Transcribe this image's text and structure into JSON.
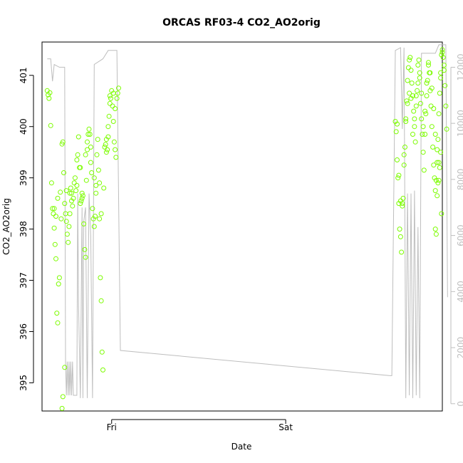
{
  "chart_data": {
    "type": "scatter",
    "title": "ORCAS RF03-4 CO2_AO2orig",
    "xlabel": "Date",
    "ylabel": "CO2_AO2orig",
    "x_ticks": [
      "Fri",
      "Sat"
    ],
    "y_ticks": [
      "395",
      "396",
      "397",
      "398",
      "399",
      "400",
      "401"
    ],
    "y2_ticks": [
      "0",
      "2000",
      "4000",
      "6000",
      "8000",
      "10000",
      "12000"
    ],
    "ylim": [
      394.45,
      401.65
    ],
    "y2lim": [
      -260,
      12900
    ],
    "xlim_days_rel_fri": [
      -0.4,
      1.9
    ],
    "colors": {
      "points": "#7cfc00",
      "line": "#bebebe",
      "axis": "#000000",
      "right_axis": "#bebebe"
    },
    "series": [
      {
        "type": "scatter",
        "axis": "left",
        "points": [
          [
            -0.37,
            400.7
          ],
          [
            -0.365,
            400.62
          ],
          [
            -0.36,
            400.55
          ],
          [
            -0.355,
            400.66
          ],
          [
            -0.35,
            400.02
          ],
          [
            -0.345,
            398.9
          ],
          [
            -0.34,
            398.4
          ],
          [
            -0.335,
            398.3
          ],
          [
            -0.33,
            398.02
          ],
          [
            -0.325,
            397.7
          ],
          [
            -0.32,
            397.42
          ],
          [
            -0.315,
            396.36
          ],
          [
            -0.31,
            396.17
          ],
          [
            -0.305,
            396.93
          ],
          [
            -0.3,
            397.05
          ],
          [
            -0.295,
            398.72
          ],
          [
            -0.29,
            398.2
          ],
          [
            -0.285,
            399.66
          ],
          [
            -0.28,
            399.7
          ],
          [
            -0.275,
            399.1
          ],
          [
            -0.27,
            398.5
          ],
          [
            -0.265,
            398.3
          ],
          [
            -0.26,
            398.15
          ],
          [
            -0.255,
            397.9
          ],
          [
            -0.25,
            397.74
          ],
          [
            -0.245,
            398.05
          ],
          [
            -0.24,
            398.7
          ],
          [
            -0.235,
            398.8
          ],
          [
            -0.23,
            398.55
          ],
          [
            -0.225,
            398.45
          ],
          [
            -0.22,
            398.6
          ],
          [
            -0.215,
            398.9
          ],
          [
            -0.21,
            399.0
          ],
          [
            -0.205,
            398.75
          ],
          [
            -0.2,
            399.35
          ],
          [
            -0.195,
            399.45
          ],
          [
            -0.19,
            399.8
          ],
          [
            -0.185,
            399.2
          ],
          [
            -0.18,
            398.5
          ],
          [
            -0.175,
            398.55
          ],
          [
            -0.17,
            398.6
          ],
          [
            -0.165,
            398.65
          ],
          [
            -0.16,
            398.1
          ],
          [
            -0.155,
            397.6
          ],
          [
            -0.15,
            397.45
          ],
          [
            -0.145,
            398.95
          ],
          [
            -0.14,
            399.55
          ],
          [
            -0.135,
            399.85
          ],
          [
            -0.13,
            399.95
          ],
          [
            -0.125,
            399.85
          ],
          [
            -0.12,
            399.3
          ],
          [
            -0.115,
            399.1
          ],
          [
            -0.11,
            398.4
          ],
          [
            -0.105,
            398.2
          ],
          [
            -0.1,
            398.05
          ],
          [
            -0.095,
            398.25
          ],
          [
            -0.09,
            398.7
          ],
          [
            -0.085,
            399.45
          ],
          [
            -0.08,
            399.75
          ],
          [
            -0.075,
            399.15
          ],
          [
            -0.07,
            398.2
          ],
          [
            -0.065,
            397.05
          ],
          [
            -0.06,
            396.6
          ],
          [
            -0.055,
            395.6
          ],
          [
            -0.05,
            395.25
          ],
          [
            -0.045,
            398.8
          ],
          [
            -0.04,
            399.6
          ],
          [
            -0.035,
            399.65
          ],
          [
            -0.03,
            399.5
          ],
          [
            -0.025,
            399.55
          ],
          [
            -0.02,
            399.8
          ],
          [
            -0.015,
            400.2
          ],
          [
            -0.01,
            400.45
          ],
          [
            -0.005,
            400.55
          ],
          [
            0.0,
            400.7
          ],
          [
            0.005,
            400.4
          ],
          [
            0.01,
            400.1
          ],
          [
            0.015,
            399.7
          ],
          [
            0.02,
            399.55
          ],
          [
            0.025,
            399.4
          ],
          [
            0.03,
            400.55
          ],
          [
            0.035,
            400.65
          ],
          [
            0.04,
            400.75
          ],
          [
            -0.27,
            395.3
          ],
          [
            -0.28,
            394.73
          ],
          [
            -0.285,
            394.5
          ],
          [
            -0.33,
            398.4
          ],
          [
            -0.32,
            398.25
          ],
          [
            -0.31,
            398.6
          ],
          [
            -0.26,
            398.75
          ],
          [
            -0.24,
            398.3
          ],
          [
            -0.23,
            398.7
          ],
          [
            -0.2,
            398.85
          ],
          [
            -0.18,
            399.2
          ],
          [
            -0.17,
            398.7
          ],
          [
            -0.15,
            399.45
          ],
          [
            -0.14,
            399.7
          ],
          [
            -0.12,
            399.6
          ],
          [
            -0.1,
            399.0
          ],
          [
            -0.09,
            398.85
          ],
          [
            -0.07,
            398.9
          ],
          [
            -0.06,
            398.3
          ],
          [
            -0.03,
            399.75
          ],
          [
            -0.02,
            400.0
          ],
          [
            -0.01,
            400.6
          ],
          [
            0.01,
            400.65
          ],
          [
            0.02,
            400.35
          ],
          [
            1.63,
            400.1
          ],
          [
            1.635,
            399.9
          ],
          [
            1.64,
            399.35
          ],
          [
            1.645,
            399.0
          ],
          [
            1.65,
            398.5
          ],
          [
            1.655,
            398.0
          ],
          [
            1.66,
            397.85
          ],
          [
            1.665,
            397.55
          ],
          [
            1.67,
            398.45
          ],
          [
            1.675,
            398.6
          ],
          [
            1.68,
            399.25
          ],
          [
            1.685,
            399.6
          ],
          [
            1.69,
            400.1
          ],
          [
            1.695,
            400.5
          ],
          [
            1.7,
            400.9
          ],
          [
            1.705,
            401.15
          ],
          [
            1.71,
            401.3
          ],
          [
            1.715,
            401.35
          ],
          [
            1.72,
            401.1
          ],
          [
            1.725,
            400.85
          ],
          [
            1.73,
            400.6
          ],
          [
            1.735,
            400.3
          ],
          [
            1.74,
            400.0
          ],
          [
            1.745,
            399.7
          ],
          [
            1.75,
            400.4
          ],
          [
            1.755,
            400.7
          ],
          [
            1.76,
            401.2
          ],
          [
            1.765,
            401.3
          ],
          [
            1.77,
            400.95
          ],
          [
            1.775,
            400.45
          ],
          [
            1.78,
            400.15
          ],
          [
            1.785,
            399.85
          ],
          [
            1.79,
            399.5
          ],
          [
            1.795,
            399.15
          ],
          [
            1.8,
            399.85
          ],
          [
            1.805,
            400.25
          ],
          [
            1.81,
            400.6
          ],
          [
            1.815,
            400.9
          ],
          [
            1.82,
            401.25
          ],
          [
            1.825,
            401.05
          ],
          [
            1.83,
            400.7
          ],
          [
            1.835,
            400.4
          ],
          [
            1.84,
            400.0
          ],
          [
            1.845,
            399.6
          ],
          [
            1.85,
            399.25
          ],
          [
            1.855,
            399.0
          ],
          [
            1.86,
            398.75
          ],
          [
            1.865,
            398.95
          ],
          [
            1.87,
            399.3
          ],
          [
            1.875,
            399.75
          ],
          [
            1.88,
            400.25
          ],
          [
            1.885,
            400.65
          ],
          [
            1.89,
            401.05
          ],
          [
            1.895,
            401.4
          ],
          [
            1.9,
            401.5
          ],
          [
            1.905,
            401.35
          ],
          [
            1.91,
            401.1
          ],
          [
            1.915,
            400.8
          ],
          [
            1.92,
            400.4
          ],
          [
            1.925,
            399.95
          ],
          [
            1.86,
            398.0
          ],
          [
            1.865,
            397.9
          ],
          [
            1.87,
            398.65
          ],
          [
            1.875,
            398.9
          ],
          [
            1.88,
            398.95
          ],
          [
            1.885,
            399.2
          ],
          [
            1.89,
            399.5
          ],
          [
            1.895,
            398.3
          ],
          [
            1.64,
            400.05
          ],
          [
            1.65,
            399.05
          ],
          [
            1.66,
            398.55
          ],
          [
            1.67,
            398.5
          ],
          [
            1.68,
            399.45
          ],
          [
            1.69,
            400.15
          ],
          [
            1.7,
            400.45
          ],
          [
            1.71,
            400.65
          ],
          [
            1.72,
            400.55
          ],
          [
            1.73,
            399.85
          ],
          [
            1.74,
            400.15
          ],
          [
            1.75,
            400.6
          ],
          [
            1.76,
            400.85
          ],
          [
            1.77,
            401.05
          ],
          [
            1.78,
            400.65
          ],
          [
            1.79,
            400.0
          ],
          [
            1.8,
            400.3
          ],
          [
            1.81,
            400.85
          ],
          [
            1.82,
            401.2
          ],
          [
            1.83,
            401.05
          ],
          [
            1.84,
            400.75
          ],
          [
            1.85,
            400.35
          ],
          [
            1.86,
            399.85
          ],
          [
            1.87,
            399.55
          ],
          [
            1.88,
            399.3
          ],
          [
            1.89,
            400.95
          ],
          [
            1.9,
            401.45
          ],
          [
            1.91,
            401.2
          ]
        ]
      },
      {
        "type": "line",
        "axis": "right",
        "points": [
          [
            -0.37,
            12300
          ],
          [
            -0.35,
            12300
          ],
          [
            -0.34,
            11500
          ],
          [
            -0.33,
            12100
          ],
          [
            -0.3,
            12000
          ],
          [
            -0.27,
            12000
          ],
          [
            -0.265,
            1500
          ],
          [
            -0.26,
            300
          ],
          [
            -0.255,
            1500
          ],
          [
            -0.25,
            300
          ],
          [
            -0.245,
            1500
          ],
          [
            -0.24,
            300
          ],
          [
            -0.235,
            1500
          ],
          [
            -0.23,
            300
          ],
          [
            -0.225,
            1500
          ],
          [
            -0.22,
            300
          ],
          [
            -0.2,
            300
          ],
          [
            -0.195,
            7500
          ],
          [
            -0.19,
            3500
          ],
          [
            -0.18,
            200
          ],
          [
            -0.17,
            7000
          ],
          [
            -0.165,
            200
          ],
          [
            -0.16,
            6500
          ],
          [
            -0.15,
            7000
          ],
          [
            -0.14,
            200
          ],
          [
            -0.13,
            7500
          ],
          [
            -0.12,
            6000
          ],
          [
            -0.11,
            200
          ],
          [
            -0.1,
            12100
          ],
          [
            -0.05,
            12300
          ],
          [
            -0.02,
            12600
          ],
          [
            0.0,
            12600
          ],
          [
            0.03,
            12600
          ],
          [
            0.05,
            1900
          ],
          [
            1.6,
            1000
          ],
          [
            1.61,
            1000
          ],
          [
            1.63,
            12600
          ],
          [
            1.66,
            12700
          ],
          [
            1.67,
            9800
          ],
          [
            1.68,
            12700
          ],
          [
            1.69,
            200
          ],
          [
            1.7,
            7500
          ],
          [
            1.71,
            300
          ],
          [
            1.72,
            7500
          ],
          [
            1.73,
            200
          ],
          [
            1.74,
            7600
          ],
          [
            1.75,
            300
          ],
          [
            1.76,
            6300
          ],
          [
            1.77,
            200
          ],
          [
            1.78,
            12500
          ],
          [
            1.82,
            12500
          ],
          [
            1.86,
            12500
          ],
          [
            1.88,
            12800
          ],
          [
            1.92,
            12800
          ],
          [
            1.93,
            3800
          ]
        ]
      }
    ]
  }
}
